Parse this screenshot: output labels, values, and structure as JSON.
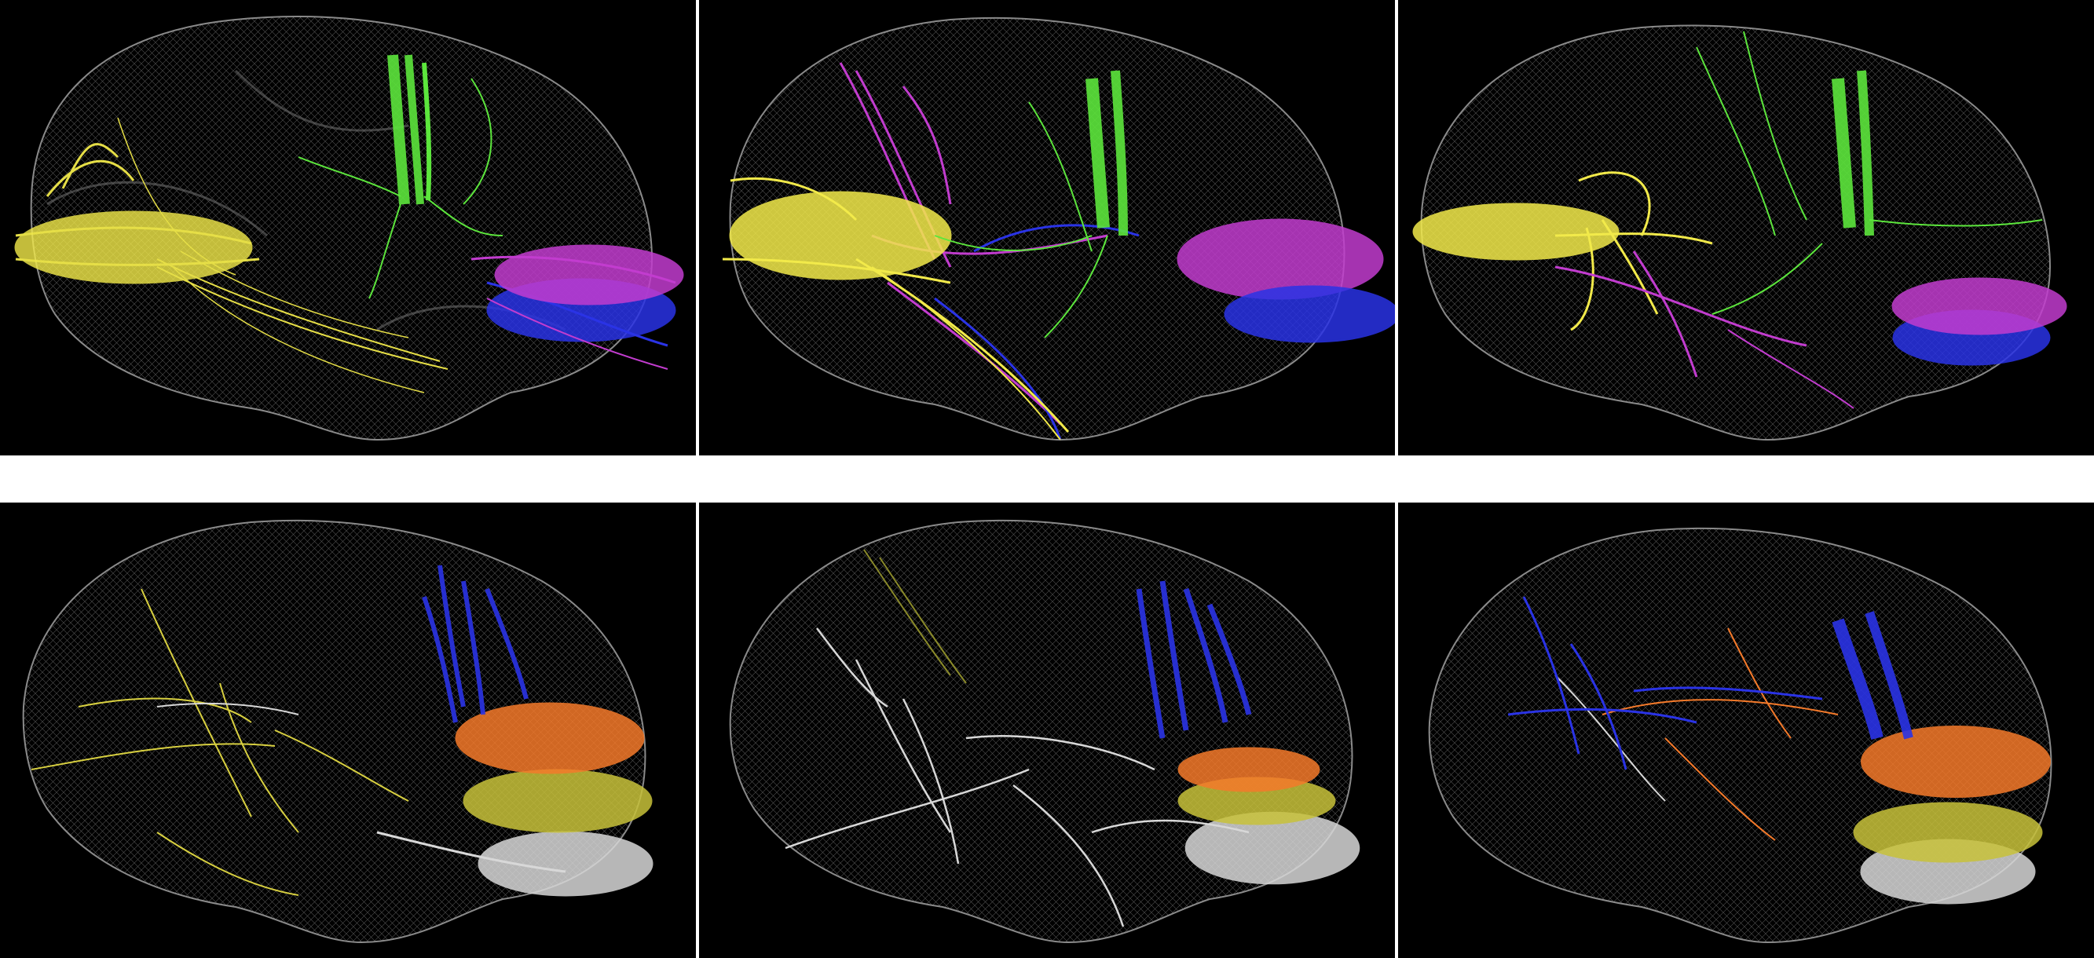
{
  "figure": {
    "layout": "2x3 grid",
    "panels": [
      {
        "row": 1,
        "col": 1,
        "bundles": [
          "yellow",
          "green",
          "purple",
          "blue"
        ]
      },
      {
        "row": 1,
        "col": 2,
        "bundles": [
          "yellow",
          "green",
          "purple",
          "blue"
        ]
      },
      {
        "row": 1,
        "col": 3,
        "bundles": [
          "yellow",
          "green",
          "purple",
          "blue"
        ]
      },
      {
        "row": 2,
        "col": 1,
        "bundles": [
          "blue",
          "orange",
          "olive",
          "white",
          "yellow"
        ]
      },
      {
        "row": 2,
        "col": 2,
        "bundles": [
          "blue",
          "orange",
          "olive",
          "white"
        ]
      },
      {
        "row": 2,
        "col": 3,
        "bundles": [
          "blue",
          "orange",
          "olive",
          "white"
        ]
      }
    ]
  },
  "colors": {
    "background": "#000000",
    "gap": "#ffffff",
    "brain": "#8a8a8a",
    "yellow": "#f2ea4a",
    "green": "#5ce63c",
    "purple": "#c23ccf",
    "blue": "#2a33e6",
    "orange": "#f57a2a",
    "olive": "#c8c23a",
    "white": "#d8d8d8"
  }
}
